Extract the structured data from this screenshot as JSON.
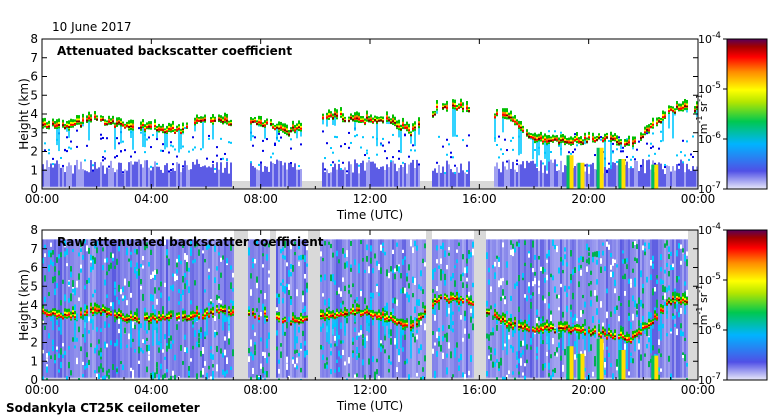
{
  "date_label": "10 June 2017",
  "footer_label": "Sodankyla CT25K ceilometer",
  "colors": {
    "background": "#ffffff",
    "frame": "#000000",
    "nodata": "#d9d9d9",
    "scale": [
      "#dcdcf0",
      "#0000e6",
      "#00c8ff",
      "#00c000",
      "#c8e600",
      "#ffff00",
      "#ff8000",
      "#ff0000",
      "#800000",
      "#5a005a"
    ]
  },
  "chart_data": [
    {
      "type": "heatmap",
      "title": "Attenuated backscatter coefficient",
      "xlabel": "Time (UTC)",
      "ylabel": "Height (km)",
      "x_ticks": [
        "00:00",
        "04:00",
        "08:00",
        "12:00",
        "16:00",
        "20:00",
        "00:00"
      ],
      "xlim_hours": [
        0,
        24
      ],
      "y_ticks": [
        0,
        1,
        2,
        3,
        4,
        5,
        6,
        7,
        8
      ],
      "ylim": [
        0,
        8
      ],
      "colorbar": {
        "scale": "log",
        "range": [
          1e-07,
          0.0001
        ],
        "tick_bases": [
          "10",
          "10",
          "10",
          "10"
        ],
        "tick_exponents": [
          "-7",
          "-6",
          "-5",
          "-4"
        ],
        "unit_base": [
          "m",
          "sr"
        ],
        "unit_exponent": [
          "-1",
          "-1"
        ]
      },
      "cloud_layer": [
        {
          "t": 0.0,
          "h": 3.3
        },
        {
          "t": 1.0,
          "h": 3.2
        },
        {
          "t": 2.0,
          "h": 3.6
        },
        {
          "t": 3.0,
          "h": 3.2
        },
        {
          "t": 4.0,
          "h": 3.1
        },
        {
          "t": 5.0,
          "h": 3.0
        },
        {
          "t": 5.8,
          "h": 3.6
        },
        {
          "t": 6.5,
          "h": 3.5
        },
        {
          "t": 8.0,
          "h": 3.4
        },
        {
          "t": 9.0,
          "h": 2.9
        },
        {
          "t": 10.5,
          "h": 3.8
        },
        {
          "t": 11.5,
          "h": 3.5
        },
        {
          "t": 12.5,
          "h": 3.6
        },
        {
          "t": 13.5,
          "h": 2.9
        },
        {
          "t": 14.5,
          "h": 4.2
        },
        {
          "t": 15.5,
          "h": 4.2
        },
        {
          "t": 17.0,
          "h": 3.7
        },
        {
          "t": 18.0,
          "h": 2.5
        },
        {
          "t": 19.5,
          "h": 2.4
        },
        {
          "t": 20.5,
          "h": 2.6
        },
        {
          "t": 21.5,
          "h": 2.2
        },
        {
          "t": 22.3,
          "h": 3.2
        },
        {
          "t": 23.0,
          "h": 4.1
        }
      ],
      "data_gaps_hours": [
        [
          6.9,
          7.6
        ],
        [
          9.5,
          10.2
        ],
        [
          13.8,
          14.2
        ],
        [
          15.6,
          16.5
        ]
      ]
    },
    {
      "type": "heatmap",
      "title": "Raw attenuated backscatter coefficient",
      "xlabel": "Time (UTC)",
      "ylabel": "Height (km)",
      "x_ticks": [
        "00:00",
        "04:00",
        "08:00",
        "12:00",
        "16:00",
        "20:00",
        "00:00"
      ],
      "xlim_hours": [
        0,
        24
      ],
      "y_ticks": [
        0,
        1,
        2,
        3,
        4,
        5,
        6,
        7,
        8
      ],
      "ylim": [
        0,
        8
      ],
      "colorbar": {
        "scale": "log",
        "range": [
          1e-07,
          0.0001
        ],
        "tick_bases": [
          "10",
          "10",
          "10",
          "10"
        ],
        "tick_exponents": [
          "-7",
          "-6",
          "-5",
          "-4"
        ],
        "unit_base": [
          "m",
          "sr"
        ],
        "unit_exponent": [
          "-1",
          "-1"
        ]
      },
      "cloud_layer": [
        {
          "t": 0.0,
          "h": 3.4
        },
        {
          "t": 1.0,
          "h": 3.2
        },
        {
          "t": 2.0,
          "h": 3.6
        },
        {
          "t": 3.0,
          "h": 3.1
        },
        {
          "t": 4.0,
          "h": 3.1
        },
        {
          "t": 5.0,
          "h": 3.2
        },
        {
          "t": 5.8,
          "h": 3.3
        },
        {
          "t": 6.5,
          "h": 3.5
        },
        {
          "t": 8.0,
          "h": 3.3
        },
        {
          "t": 9.0,
          "h": 2.9
        },
        {
          "t": 10.5,
          "h": 3.3
        },
        {
          "t": 11.5,
          "h": 3.5
        },
        {
          "t": 12.5,
          "h": 3.2
        },
        {
          "t": 13.5,
          "h": 2.6
        },
        {
          "t": 14.5,
          "h": 4.2
        },
        {
          "t": 15.5,
          "h": 4.1
        },
        {
          "t": 17.0,
          "h": 2.8
        },
        {
          "t": 18.0,
          "h": 2.6
        },
        {
          "t": 19.5,
          "h": 2.5
        },
        {
          "t": 20.5,
          "h": 2.3
        },
        {
          "t": 21.5,
          "h": 2.0
        },
        {
          "t": 22.3,
          "h": 3.0
        },
        {
          "t": 23.0,
          "h": 4.1
        }
      ],
      "data_gaps_hours": [
        [
          7.0,
          7.5
        ],
        [
          8.3,
          8.5
        ],
        [
          9.7,
          10.1
        ],
        [
          14.0,
          14.2
        ],
        [
          15.8,
          16.2
        ],
        [
          23.6,
          24.0
        ]
      ]
    }
  ]
}
